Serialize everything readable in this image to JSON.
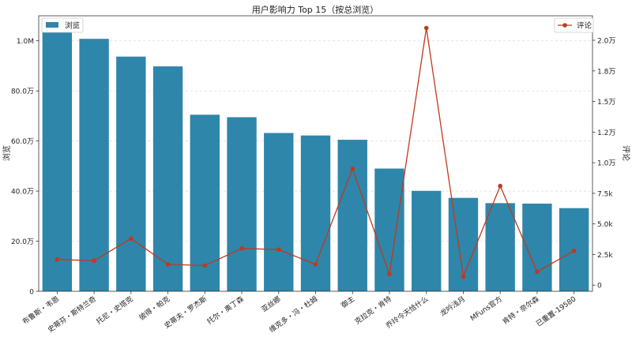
{
  "chart_data": {
    "type": "bar",
    "title": "用户影响力 Top 15（按总浏览）",
    "categories": [
      "布鲁斯・韦恩",
      "史蒂芬・斯特兰奇",
      "托尼・史塔克",
      "彼得・帕克",
      "史蒂夫・罗杰斯",
      "托尔・奥丁森",
      "亚丝娜",
      "维克多・冯・杜姆",
      "御主",
      "克拉克・肯特",
      "乔玲今天恰什么",
      "龙吟浅月",
      "MFuns官方",
      "肯特・奈尔森",
      "已重置-19580"
    ],
    "series": [
      {
        "name": "浏览",
        "axis": "left",
        "kind": "bar",
        "color": "#2e86ab",
        "values": [
          1045000,
          1008000,
          937000,
          898000,
          705000,
          695000,
          632000,
          622000,
          605000,
          490000,
          401000,
          373000,
          352000,
          350000,
          332000
        ]
      },
      {
        "name": "评论",
        "axis": "right",
        "kind": "line",
        "color": "#c0391b",
        "values": [
          2100,
          2000,
          3800,
          1700,
          1600,
          3000,
          2900,
          1700,
          9500,
          900,
          21000,
          700,
          8100,
          1100,
          2800
        ]
      }
    ],
    "y_left": {
      "label": "浏览",
      "range": [
        0,
        1100000
      ],
      "ticks": [
        0,
        200000,
        400000,
        600000,
        800000,
        1000000
      ],
      "tick_labels": [
        "0",
        "20.0万",
        "40.0万",
        "60.0万",
        "80.0万",
        "1.0M"
      ]
    },
    "y_right": {
      "label": "评论",
      "range": [
        -500,
        22000
      ],
      "ticks": [
        0,
        2500,
        5000,
        7500,
        10000,
        12500,
        15000,
        17500,
        20000
      ],
      "tick_labels": [
        "0",
        "2.5k",
        "5.0k",
        "7.5k",
        "1.0万",
        "1.2万",
        "1.5万",
        "1.8万",
        "2.0万"
      ]
    },
    "grid": "horizontal dashed",
    "legend_left": "top-left",
    "legend_right": "top-right"
  }
}
